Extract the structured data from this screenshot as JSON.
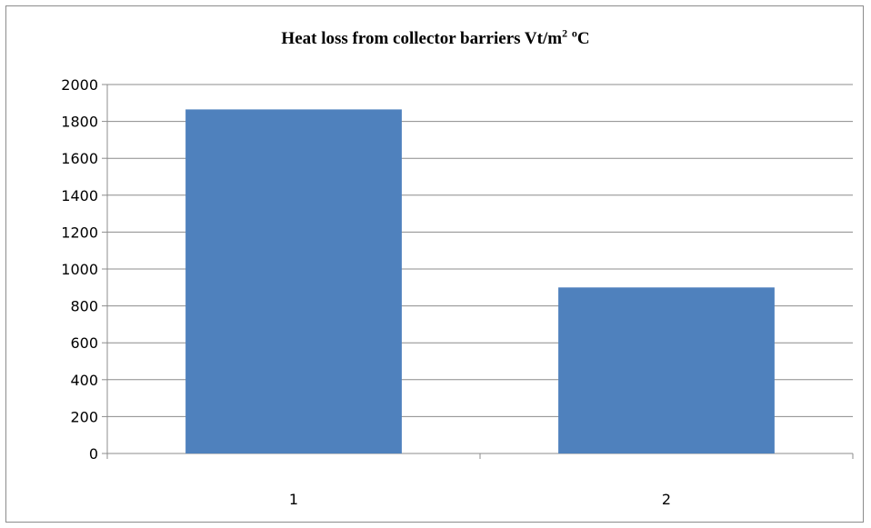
{
  "chart_data": {
    "type": "bar",
    "title": "Heat loss from collector barriers Vt/m",
    "title_sup1": "2",
    "title_sep": " ",
    "title_sup2": "o",
    "title_end": "C",
    "categories": [
      "1",
      "2"
    ],
    "values": [
      1865,
      900
    ],
    "ylim": [
      0,
      2000
    ],
    "ytick_step": 200,
    "grid": true,
    "legend": "none",
    "bar_color": "#4f81bd",
    "grid_color": "#8c8c8c"
  }
}
